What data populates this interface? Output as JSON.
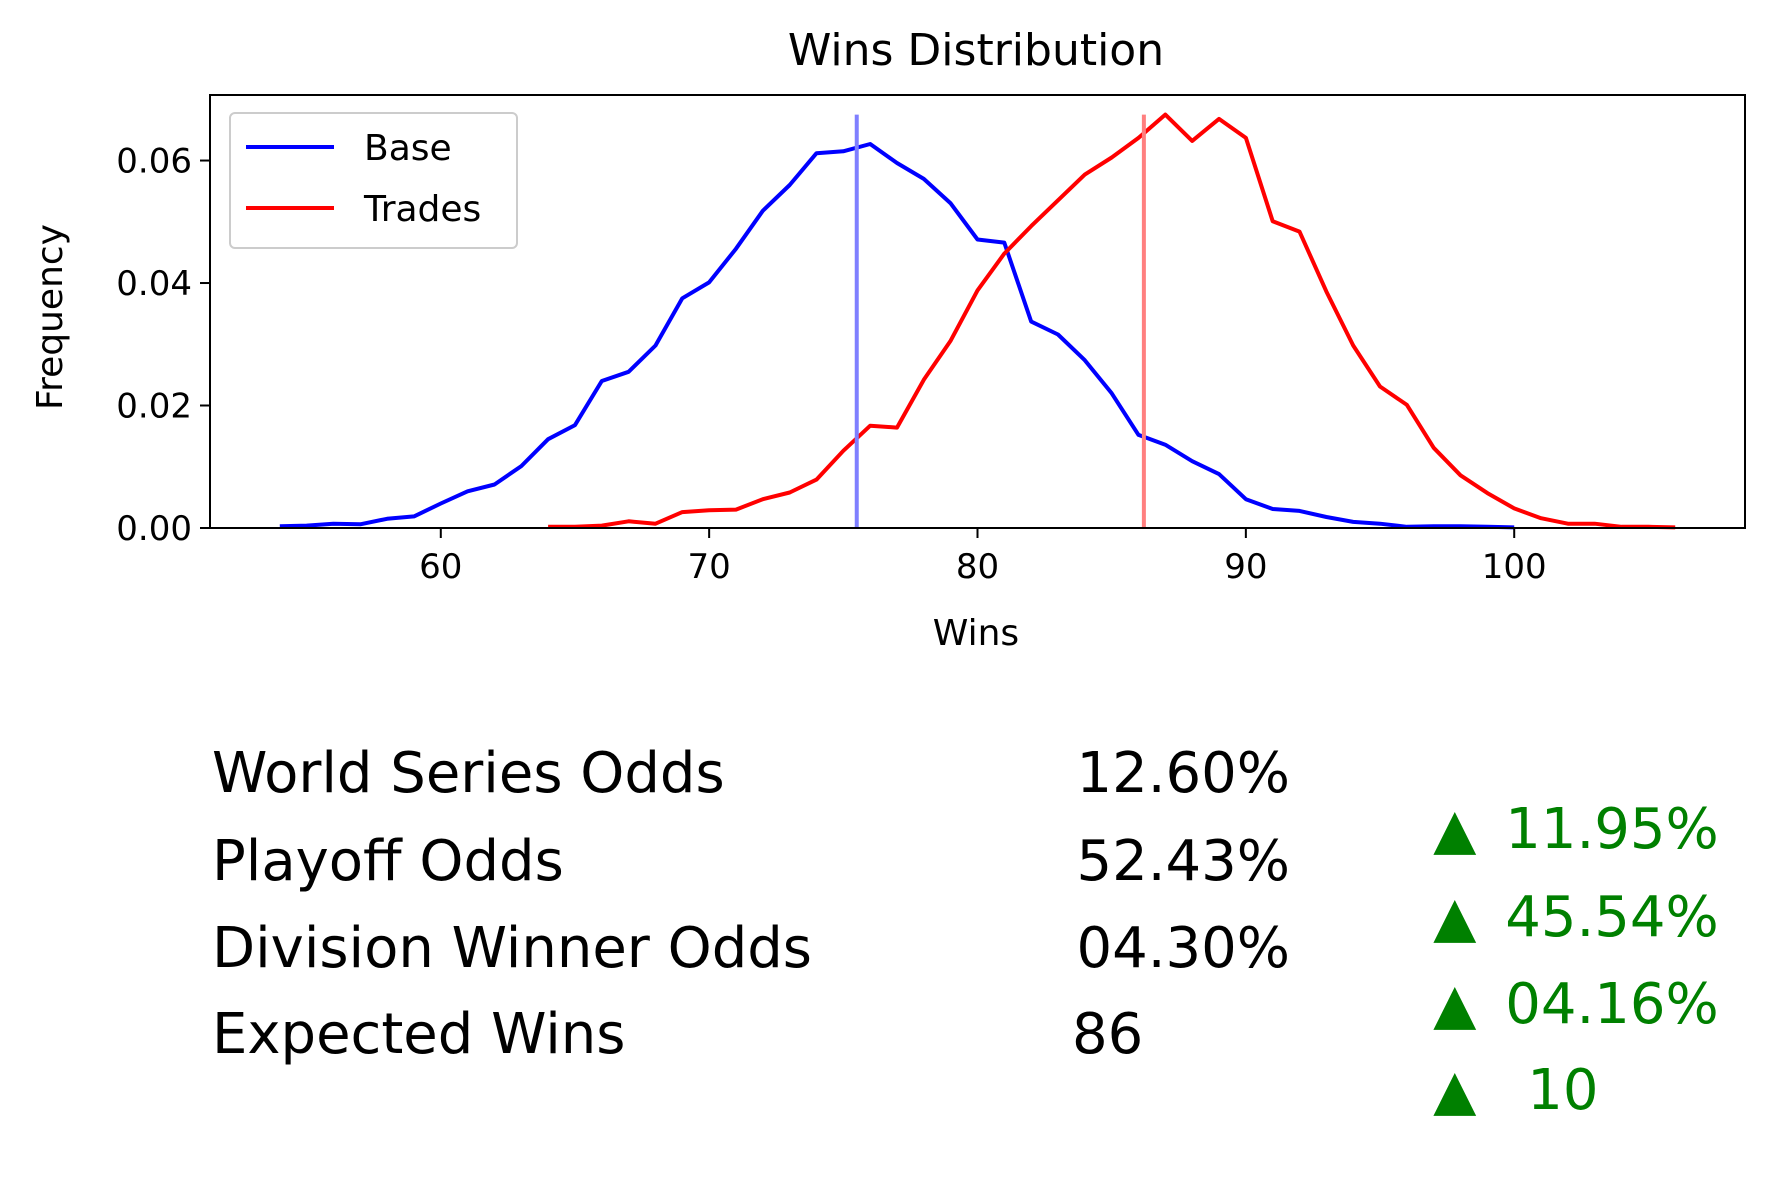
{
  "colors": {
    "base": "#0000ff",
    "trades": "#ff0000",
    "base_mean_line": "#7f7fff",
    "trades_mean_line": "#ff7f7f",
    "delta": "#008000",
    "text": "#000000"
  },
  "chart_data": {
    "type": "line",
    "title": "Wins Distribution",
    "xlabel": "Wins",
    "ylabel": "Frequency",
    "xlim": [
      51.4,
      108.6
    ],
    "ylim": [
      0,
      0.0707
    ],
    "xticks": [
      60,
      70,
      80,
      90,
      100
    ],
    "xtick_labels": [
      "60",
      "70",
      "80",
      "90",
      "100"
    ],
    "yticks": [
      0.0,
      0.02,
      0.04,
      0.06
    ],
    "ytick_labels": [
      "0.00",
      "0.02",
      "0.04",
      "0.06"
    ],
    "grid": false,
    "legend_position": "upper-left",
    "series": [
      {
        "name": "Base",
        "color": "#0000ff",
        "x": [
          54,
          55,
          56,
          57,
          58,
          59,
          60,
          61,
          62,
          63,
          64,
          65,
          66,
          67,
          68,
          69,
          70,
          71,
          72,
          73,
          74,
          75,
          76,
          77,
          78,
          79,
          80,
          81,
          82,
          83,
          84,
          85,
          86,
          87,
          88,
          89,
          90,
          91,
          92,
          93,
          94,
          95,
          96,
          97,
          98,
          99,
          100
        ],
        "values": [
          0.0003,
          0.0004,
          0.0007,
          0.0006,
          0.0015,
          0.0019,
          0.004,
          0.006,
          0.0071,
          0.0101,
          0.0145,
          0.0168,
          0.024,
          0.0255,
          0.0298,
          0.0375,
          0.0401,
          0.0456,
          0.0518,
          0.056,
          0.0612,
          0.0615,
          0.0627,
          0.0596,
          0.057,
          0.053,
          0.0471,
          0.0466,
          0.0337,
          0.0316,
          0.0274,
          0.022,
          0.0152,
          0.0136,
          0.0109,
          0.0088,
          0.0047,
          0.0031,
          0.0028,
          0.0018,
          0.001,
          0.0007,
          0.0002,
          0.0003,
          0.0003,
          0.0002,
          0.0001
        ]
      },
      {
        "name": "Trades",
        "color": "#ff0000",
        "x": [
          64,
          65,
          66,
          67,
          68,
          69,
          70,
          71,
          72,
          73,
          74,
          75,
          76,
          77,
          78,
          79,
          80,
          81,
          82,
          83,
          84,
          85,
          86,
          87,
          88,
          89,
          90,
          91,
          92,
          93,
          94,
          95,
          96,
          97,
          98,
          99,
          100,
          101,
          102,
          103,
          104,
          105,
          106
        ],
        "values": [
          0.0002,
          0.0002,
          0.0004,
          0.0011,
          0.0007,
          0.0026,
          0.0029,
          0.003,
          0.0047,
          0.0058,
          0.0079,
          0.0126,
          0.0167,
          0.0164,
          0.0242,
          0.0306,
          0.0388,
          0.0448,
          0.0493,
          0.0535,
          0.0577,
          0.0605,
          0.0637,
          0.0675,
          0.0632,
          0.0668,
          0.0637,
          0.0501,
          0.0484,
          0.0386,
          0.0298,
          0.0231,
          0.0201,
          0.0131,
          0.0086,
          0.0057,
          0.0032,
          0.0016,
          0.0007,
          0.0007,
          0.0002,
          0.0002,
          0.0001
        ]
      }
    ],
    "vlines": [
      {
        "x": 75.5,
        "color": "#7f7fff"
      },
      {
        "x": 86.2,
        "color": "#ff7f7f"
      }
    ]
  },
  "stats": [
    {
      "label": "World Series Odds",
      "value": "12.60%",
      "arrow": "▲",
      "delta": "11.95%"
    },
    {
      "label": "Playoff Odds",
      "value": "52.43%",
      "arrow": "▲",
      "delta": "45.54%"
    },
    {
      "label": "Division Winner Odds",
      "value": "04.30%",
      "arrow": "▲",
      "delta": "04.16%"
    },
    {
      "label": "Expected Wins",
      "value": "86",
      "arrow": "▲",
      "delta": "10"
    }
  ]
}
